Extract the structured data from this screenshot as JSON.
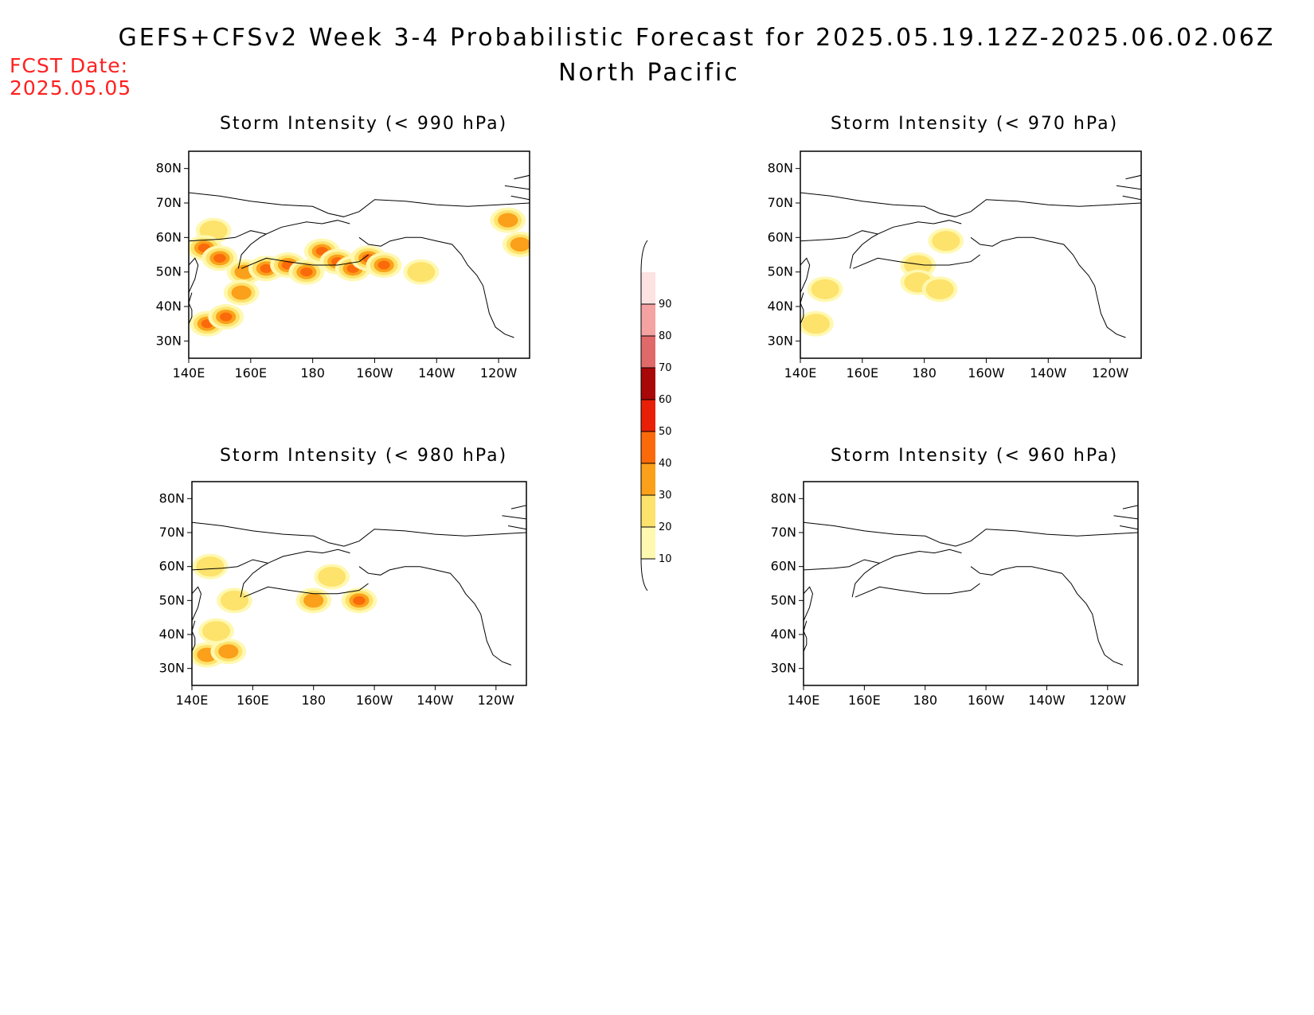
{
  "header": {
    "title": "GEFS+CFSv2 Week 3-4 Probabilistic Forecast for 2025.05.19.12Z-2025.06.02.06Z",
    "subtitle": "North Pacific",
    "fcst_label": "FCST Date:",
    "fcst_date": "2025.05.05"
  },
  "colors": {
    "fcst": "#ff2020",
    "coast": "#000000"
  },
  "axes": {
    "lon_ticks": [
      "140E",
      "160E",
      "180",
      "160W",
      "140W",
      "120W"
    ],
    "lat_ticks": [
      "80N",
      "70N",
      "60N",
      "50N",
      "40N",
      "30N"
    ],
    "lon_range": [
      140,
      250
    ],
    "lat_range": [
      25,
      85
    ]
  },
  "colorbar": {
    "levels": [
      "10",
      "20",
      "30",
      "40",
      "50",
      "60",
      "70",
      "80",
      "90"
    ],
    "colors": [
      "#fff8b0",
      "#fde26c",
      "#fba01a",
      "#fb6a0a",
      "#e82008",
      "#a80808",
      "#e06a6a",
      "#f4a2a2",
      "#fde2e2"
    ]
  },
  "panels": [
    {
      "title": "Storm Intensity (< 990 hPa)",
      "blobs": [
        {
          "lon": 148,
          "lat": 62,
          "level": 1
        },
        {
          "lon": 145,
          "lat": 57,
          "level": 4
        },
        {
          "lon": 150,
          "lat": 54,
          "level": 3
        },
        {
          "lon": 158,
          "lat": 50,
          "level": 2
        },
        {
          "lon": 165,
          "lat": 51,
          "level": 3
        },
        {
          "lon": 172,
          "lat": 52,
          "level": 4
        },
        {
          "lon": 178,
          "lat": 50,
          "level": 5
        },
        {
          "lon": 183,
          "lat": 56,
          "level": 3
        },
        {
          "lon": 188,
          "lat": 53,
          "level": 5
        },
        {
          "lon": 193,
          "lat": 51,
          "level": 4
        },
        {
          "lon": 198,
          "lat": 54,
          "level": 5
        },
        {
          "lon": 203,
          "lat": 52,
          "level": 3
        },
        {
          "lon": 146,
          "lat": 35,
          "level": 5
        },
        {
          "lon": 152,
          "lat": 37,
          "level": 4
        },
        {
          "lon": 157,
          "lat": 44,
          "level": 2
        },
        {
          "lon": 215,
          "lat": 50,
          "level": 1
        },
        {
          "lon": 243,
          "lat": 65,
          "level": 2
        },
        {
          "lon": 247,
          "lat": 58,
          "level": 2
        }
      ]
    },
    {
      "title": "Storm Intensity (< 970 hPa)",
      "blobs": [
        {
          "lon": 178,
          "lat": 52,
          "level": 1
        },
        {
          "lon": 178,
          "lat": 47,
          "level": 1
        },
        {
          "lon": 185,
          "lat": 45,
          "level": 1
        },
        {
          "lon": 145,
          "lat": 35,
          "level": 1
        },
        {
          "lon": 148,
          "lat": 45,
          "level": 1
        },
        {
          "lon": 187,
          "lat": 59,
          "level": 1
        }
      ]
    },
    {
      "title": "Storm Intensity (< 980 hPa)",
      "blobs": [
        {
          "lon": 146,
          "lat": 60,
          "level": 1
        },
        {
          "lon": 154,
          "lat": 50,
          "level": 1
        },
        {
          "lon": 180,
          "lat": 50,
          "level": 2
        },
        {
          "lon": 186,
          "lat": 57,
          "level": 1
        },
        {
          "lon": 195,
          "lat": 50,
          "level": 3
        },
        {
          "lon": 145,
          "lat": 34,
          "level": 2
        },
        {
          "lon": 152,
          "lat": 35,
          "level": 2
        },
        {
          "lon": 148,
          "lat": 41,
          "level": 1
        }
      ]
    },
    {
      "title": "Storm Intensity (< 960 hPa)",
      "blobs": []
    }
  ]
}
